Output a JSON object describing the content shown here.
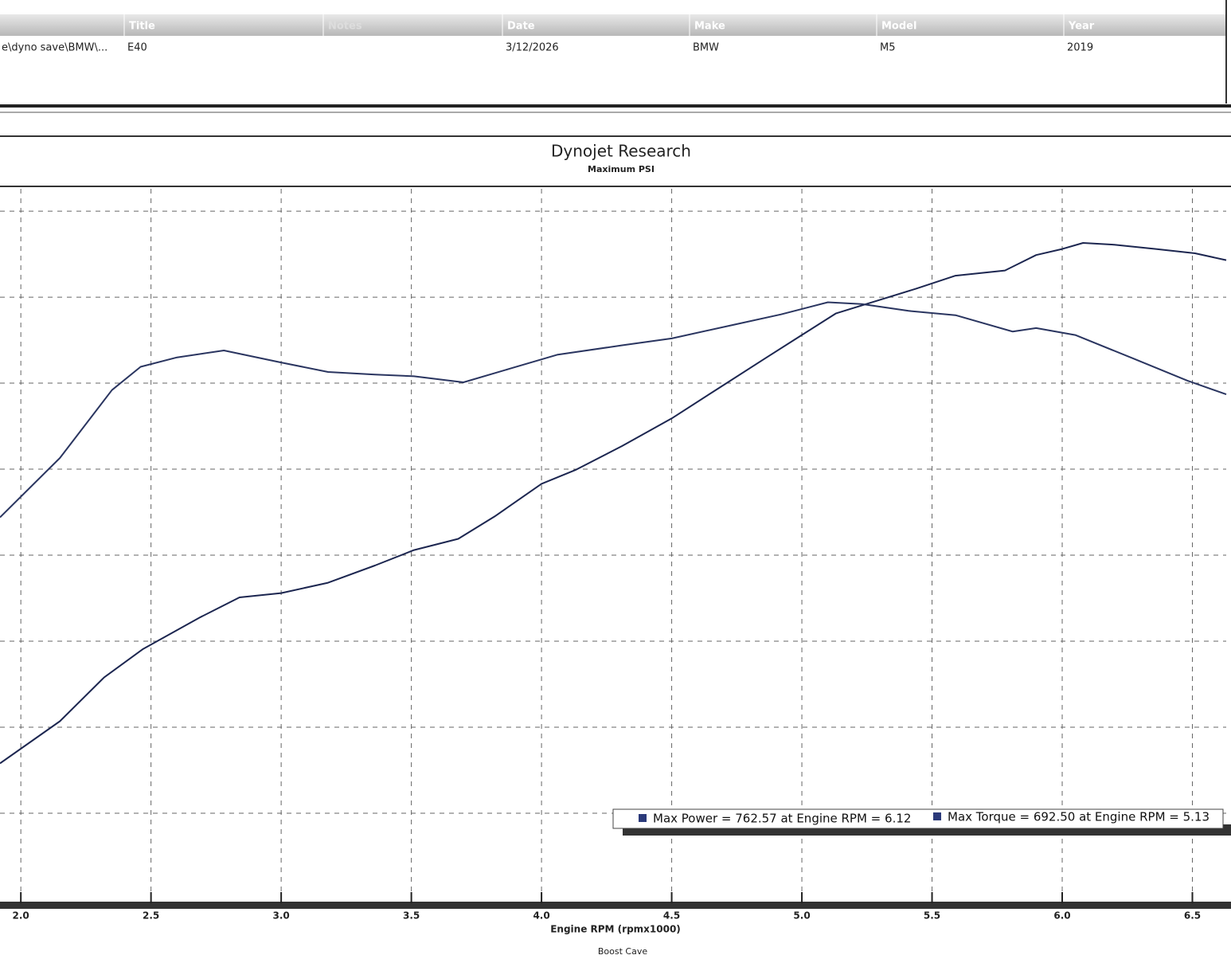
{
  "table": {
    "columns": [
      {
        "value": "e\\dyno save\\BMW\\..."
      },
      {
        "header": "Title",
        "value": "E40"
      },
      {
        "header": "Notes"
      },
      {
        "header": "Date",
        "value": "3/12/2026"
      },
      {
        "header": "Make",
        "value": "BMW"
      },
      {
        "header": "Model",
        "value": "M5"
      },
      {
        "header": "Year",
        "value": "2019"
      }
    ]
  },
  "chart_data": {
    "type": "line",
    "title": "Dynojet Research",
    "subtitle": "Maximum PSI",
    "x_label": "Engine RPM (rpmx1000)",
    "footer": "Boost Cave",
    "legend_texts": [
      "Max Power = 762.57 at Engine RPM = 6.12",
      "Max Torque = 692.50 at Engine RPM = 5.13"
    ],
    "legend_color": "#2b3a7a",
    "xlim": [
      1.92,
      6.63
    ],
    "ylim": [
      0,
      826
    ],
    "xticks": [
      {
        "value": 2,
        "label": "2.0"
      },
      2.5,
      {
        "value": 3,
        "label": "3.0"
      },
      3.5,
      {
        "value": 4,
        "label": "4.0"
      },
      4.5,
      {
        "value": 5,
        "label": "5.0"
      },
      5.5,
      {
        "value": 6,
        "label": "6.0"
      },
      6.5
    ],
    "ygrid": [
      100,
      200,
      300,
      400,
      500,
      600,
      700,
      800
    ],
    "grid": true,
    "series": [
      {
        "color": "#1c2650",
        "x": [
          1.92,
          2.15,
          2.32,
          2.47,
          2.69,
          2.84,
          3.0,
          3.18,
          3.36,
          3.51,
          3.68,
          3.82,
          4.0,
          4.13,
          4.31,
          4.5,
          4.68,
          4.86,
          5.0,
          5.13,
          5.29,
          5.44,
          5.59,
          5.78,
          5.9,
          6.0,
          6.08,
          6.2,
          6.36,
          6.51,
          6.63
        ],
        "values": [
          158,
          207,
          258,
          291,
          328,
          351,
          356,
          368,
          388,
          406,
          419,
          445,
          483,
          499,
          527,
          559,
          594,
          629,
          656,
          681,
          696,
          710,
          725,
          731,
          749,
          756,
          763,
          761,
          756,
          751,
          743
        ]
      },
      {
        "color": "#2a3560",
        "x": [
          1.92,
          2.15,
          2.35,
          2.46,
          2.6,
          2.78,
          3.0,
          3.18,
          3.36,
          3.51,
          3.7,
          3.88,
          4.06,
          4.31,
          4.5,
          4.74,
          4.92,
          5.1,
          5.23,
          5.41,
          5.59,
          5.81,
          5.9,
          6.05,
          6.27,
          6.48,
          6.63
        ],
        "values": [
          444,
          513,
          592,
          619,
          630,
          638,
          624,
          613,
          610,
          608,
          601,
          617,
          633,
          644,
          652,
          668,
          680,
          694,
          692,
          684,
          679,
          660,
          664,
          656,
          629,
          603,
          587
        ]
      }
    ]
  }
}
